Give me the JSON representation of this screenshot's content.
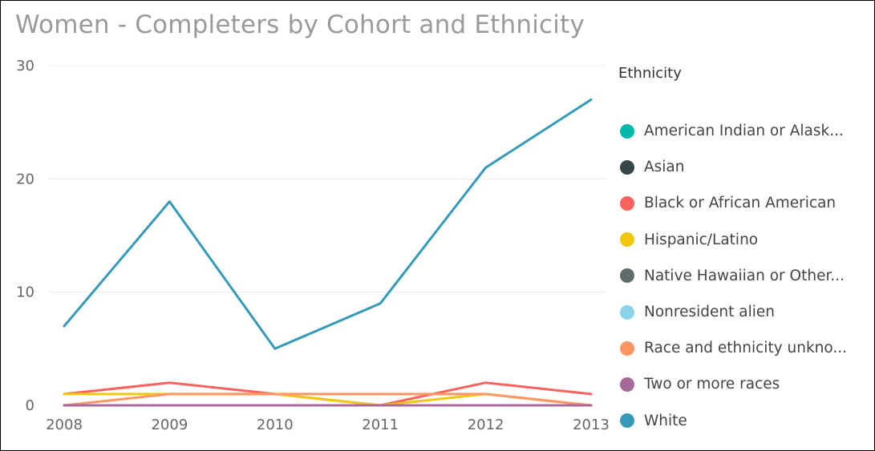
{
  "chart_data": {
    "type": "line",
    "title": "Women - Completers by Cohort and Ethnicity",
    "xlabel": "",
    "ylabel": "",
    "categories": [
      "2008",
      "2009",
      "2010",
      "2011",
      "2012",
      "2013"
    ],
    "ylim": [
      0,
      30
    ],
    "yticks": [
      "0",
      "10",
      "20",
      "30"
    ],
    "grid": true,
    "legend_position": "right",
    "legend_title": "Ethnicity",
    "series": [
      {
        "name": "American Indian or Alask...",
        "color": "#01B8AA",
        "values": [
          0,
          0,
          0,
          0,
          0,
          0
        ]
      },
      {
        "name": "Asian",
        "color": "#374649",
        "values": [
          0,
          0,
          0,
          0,
          0,
          0
        ]
      },
      {
        "name": "Black or African American",
        "color": "#FD625E",
        "values": [
          1,
          2,
          1,
          0,
          2,
          1
        ]
      },
      {
        "name": "Hispanic/Latino",
        "color": "#F2C80F",
        "values": [
          1,
          1,
          1,
          0,
          1,
          0
        ]
      },
      {
        "name": "Native Hawaiian or Other...",
        "color": "#5F6B6D",
        "values": [
          0,
          0,
          0,
          0,
          0,
          0
        ]
      },
      {
        "name": "Nonresident alien",
        "color": "#8AD4EB",
        "values": [
          0,
          0,
          0,
          0,
          0,
          0
        ]
      },
      {
        "name": "Race and ethnicity unkno...",
        "color": "#FE9666",
        "values": [
          0,
          1,
          1,
          1,
          1,
          0
        ]
      },
      {
        "name": "Two or more races",
        "color": "#A66999",
        "values": [
          0,
          0,
          0,
          0,
          0,
          0
        ]
      },
      {
        "name": "White",
        "color": "#3599B8",
        "values": [
          7,
          18,
          5,
          9,
          21,
          27
        ]
      }
    ]
  }
}
